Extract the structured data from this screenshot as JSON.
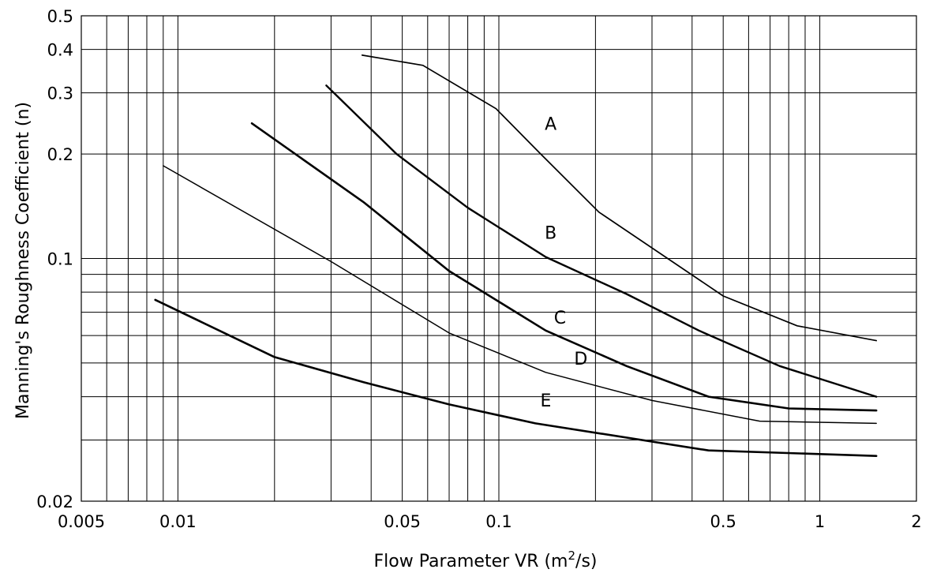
{
  "chart_data": {
    "type": "line",
    "title": "",
    "xlabel": "Flow Parameter VR (m",
    "xlabel_superscript": "2",
    "xlabel_suffix": "/s)",
    "ylabel": "Manning's Roughness Coefficient (n)",
    "x_scale": "log",
    "y_scale": "log",
    "xlim": [
      0.005,
      2
    ],
    "ylim": [
      0.02,
      0.5
    ],
    "grid": true,
    "legend": "none",
    "x_ticks": [
      {
        "value": 0.005,
        "label": "0.005"
      },
      {
        "value": 0.01,
        "label": "0.01"
      },
      {
        "value": 0.05,
        "label": "0.05"
      },
      {
        "value": 0.1,
        "label": "0.1"
      },
      {
        "value": 0.5,
        "label": "0.5"
      },
      {
        "value": 1,
        "label": "1"
      },
      {
        "value": 2,
        "label": "2"
      }
    ],
    "y_ticks": [
      {
        "value": 0.02,
        "label": "0.02"
      },
      {
        "value": 0.1,
        "label": "0.1"
      },
      {
        "value": 0.2,
        "label": "0.2"
      },
      {
        "value": 0.3,
        "label": "0.3"
      },
      {
        "value": 0.4,
        "label": "0.4"
      },
      {
        "value": 0.5,
        "label": "0.5"
      }
    ],
    "x_grid_values": [
      0.006,
      0.007,
      0.008,
      0.009,
      0.01,
      0.02,
      0.03,
      0.04,
      0.05,
      0.06,
      0.07,
      0.08,
      0.09,
      0.1,
      0.2,
      0.3,
      0.4,
      0.5,
      0.6,
      0.7,
      0.8,
      0.9,
      1
    ],
    "y_grid_values": [
      0.03,
      0.04,
      0.05,
      0.06,
      0.07,
      0.08,
      0.09,
      0.1,
      0.2,
      0.3,
      0.4
    ],
    "series": [
      {
        "name": "A",
        "x": [
          0.0375,
          0.058,
          0.098,
          0.135,
          0.205,
          0.5,
          0.85,
          1.5
        ],
        "y": [
          0.385,
          0.36,
          0.27,
          0.2,
          0.136,
          0.078,
          0.064,
          0.058
        ]
      },
      {
        "name": "B",
        "x": [
          0.029,
          0.048,
          0.08,
          0.14,
          0.25,
          0.42,
          0.75,
          1.5
        ],
        "y": [
          0.315,
          0.2,
          0.14,
          0.101,
          0.079,
          0.062,
          0.049,
          0.04
        ]
      },
      {
        "name": "C",
        "x": [
          0.017,
          0.038,
          0.07,
          0.14,
          0.25,
          0.45,
          0.8,
          1.5
        ],
        "y": [
          0.245,
          0.145,
          0.092,
          0.062,
          0.049,
          0.04,
          0.037,
          0.0365
        ]
      },
      {
        "name": "D",
        "x": [
          0.009,
          0.03,
          0.07,
          0.14,
          0.3,
          0.65,
          1.5
        ],
        "y": [
          0.185,
          0.098,
          0.061,
          0.047,
          0.039,
          0.034,
          0.0335
        ]
      },
      {
        "name": "E",
        "x": [
          0.0085,
          0.02,
          0.038,
          0.07,
          0.13,
          0.45,
          1.5
        ],
        "y": [
          0.076,
          0.052,
          0.044,
          0.038,
          0.0335,
          0.028,
          0.027
        ]
      }
    ],
    "curve_labels": [
      {
        "text": "A",
        "x": 0.145,
        "y": 0.235
      },
      {
        "text": "B",
        "x": 0.145,
        "y": 0.114
      },
      {
        "text": "C",
        "x": 0.155,
        "y": 0.065
      },
      {
        "text": "D",
        "x": 0.18,
        "y": 0.0495
      },
      {
        "text": "E",
        "x": 0.14,
        "y": 0.0375
      }
    ]
  }
}
